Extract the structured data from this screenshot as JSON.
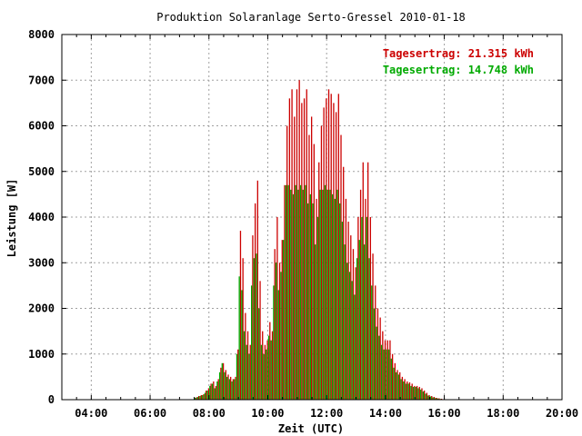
{
  "chart_data": {
    "type": "bar",
    "title": "Produktion Solaranlage Serto-Gressel 2010-01-18",
    "xlabel": "Zeit (UTC)",
    "ylabel": "Leistung [W]",
    "xlim": [
      "03:00",
      "20:00"
    ],
    "ylim": [
      0,
      8000
    ],
    "x_ticks": [
      "04:00",
      "06:00",
      "08:00",
      "10:00",
      "12:00",
      "14:00",
      "16:00",
      "18:00",
      "20:00"
    ],
    "y_ticks": [
      "0",
      "1000",
      "2000",
      "3000",
      "4000",
      "5000",
      "6000",
      "7000",
      "8000"
    ],
    "grid": true,
    "legend_position": "top-right",
    "legend": [
      {
        "label": "Tagesertrag: 21.315 kWh",
        "color": "#cc0000"
      },
      {
        "label": "Tagesertrag: 14.748 kWh",
        "color": "#00aa00"
      }
    ],
    "colors": {
      "red": "#cc0000",
      "green": "#00aa00",
      "grid": "#a0a0a0"
    },
    "x": [
      "07:35",
      "07:40",
      "07:45",
      "07:50",
      "07:55",
      "08:00",
      "08:05",
      "08:10",
      "08:15",
      "08:20",
      "08:25",
      "08:30",
      "08:35",
      "08:40",
      "08:45",
      "08:50",
      "08:55",
      "09:00",
      "09:05",
      "09:10",
      "09:15",
      "09:20",
      "09:25",
      "09:30",
      "09:35",
      "09:40",
      "09:45",
      "09:50",
      "09:55",
      "10:00",
      "10:05",
      "10:10",
      "10:15",
      "10:20",
      "10:25",
      "10:30",
      "10:35",
      "10:40",
      "10:45",
      "10:50",
      "10:55",
      "11:00",
      "11:05",
      "11:10",
      "11:15",
      "11:20",
      "11:25",
      "11:30",
      "11:35",
      "11:40",
      "11:45",
      "11:50",
      "11:55",
      "12:00",
      "12:05",
      "12:10",
      "12:15",
      "12:20",
      "12:25",
      "12:30",
      "12:35",
      "12:40",
      "12:45",
      "12:50",
      "12:55",
      "13:00",
      "13:05",
      "13:10",
      "13:15",
      "13:20",
      "13:25",
      "13:30",
      "13:35",
      "13:40",
      "13:45",
      "13:50",
      "13:55",
      "14:00",
      "14:05",
      "14:10",
      "14:15",
      "14:20",
      "14:25",
      "14:30",
      "14:35",
      "14:40",
      "14:45",
      "14:50",
      "14:55",
      "15:00",
      "15:05",
      "15:10",
      "15:15",
      "15:20",
      "15:25",
      "15:30",
      "15:35",
      "15:40",
      "15:45",
      "15:50",
      "15:55",
      "16:00"
    ],
    "series": [
      {
        "color": "#cc0000",
        "values": [
          50,
          80,
          100,
          120,
          200,
          250,
          350,
          400,
          300,
          450,
          700,
          800,
          650,
          550,
          500,
          450,
          500,
          1100,
          3700,
          3100,
          1900,
          1500,
          1200,
          3600,
          4300,
          4800,
          2600,
          1500,
          1200,
          1300,
          1700,
          1500,
          3300,
          4000,
          3000,
          3500,
          4700,
          6000,
          6600,
          6800,
          6200,
          6800,
          7000,
          6500,
          6600,
          6800,
          5800,
          6200,
          5600,
          4400,
          5200,
          6000,
          6400,
          6600,
          6800,
          6700,
          6500,
          6300,
          6700,
          5800,
          5100,
          4400,
          3900,
          3600,
          3300,
          2900,
          4000,
          4600,
          5200,
          4400,
          5200,
          4000,
          3200,
          2500,
          2000,
          1800,
          1500,
          1300,
          1300,
          1300,
          1000,
          800,
          650,
          600,
          500,
          450,
          400,
          380,
          350,
          300,
          300,
          280,
          250,
          200,
          150,
          100,
          80,
          60,
          40,
          30,
          20,
          10
        ]
      },
      {
        "color": "#00aa00",
        "values": [
          40,
          60,
          80,
          100,
          150,
          200,
          300,
          350,
          250,
          400,
          600,
          800,
          600,
          500,
          450,
          400,
          450,
          1000,
          2700,
          2400,
          1500,
          1200,
          1000,
          2500,
          3100,
          3200,
          2000,
          1200,
          1000,
          1100,
          1400,
          1300,
          2500,
          3000,
          2400,
          2800,
          3500,
          4700,
          4700,
          4600,
          4500,
          4700,
          4600,
          4700,
          4600,
          4700,
          4300,
          4500,
          4300,
          3400,
          4000,
          4600,
          4600,
          4700,
          4600,
          4600,
          4500,
          4400,
          4600,
          4300,
          3900,
          3400,
          3000,
          2800,
          2600,
          2300,
          3100,
          3500,
          4000,
          3400,
          4000,
          3100,
          2500,
          2000,
          1600,
          1400,
          1200,
          1100,
          1100,
          1100,
          900,
          700,
          600,
          550,
          450,
          400,
          350,
          350,
          300,
          280,
          280,
          250,
          220,
          180,
          130,
          90,
          70,
          50,
          35,
          25,
          15,
          8
        ]
      }
    ]
  }
}
